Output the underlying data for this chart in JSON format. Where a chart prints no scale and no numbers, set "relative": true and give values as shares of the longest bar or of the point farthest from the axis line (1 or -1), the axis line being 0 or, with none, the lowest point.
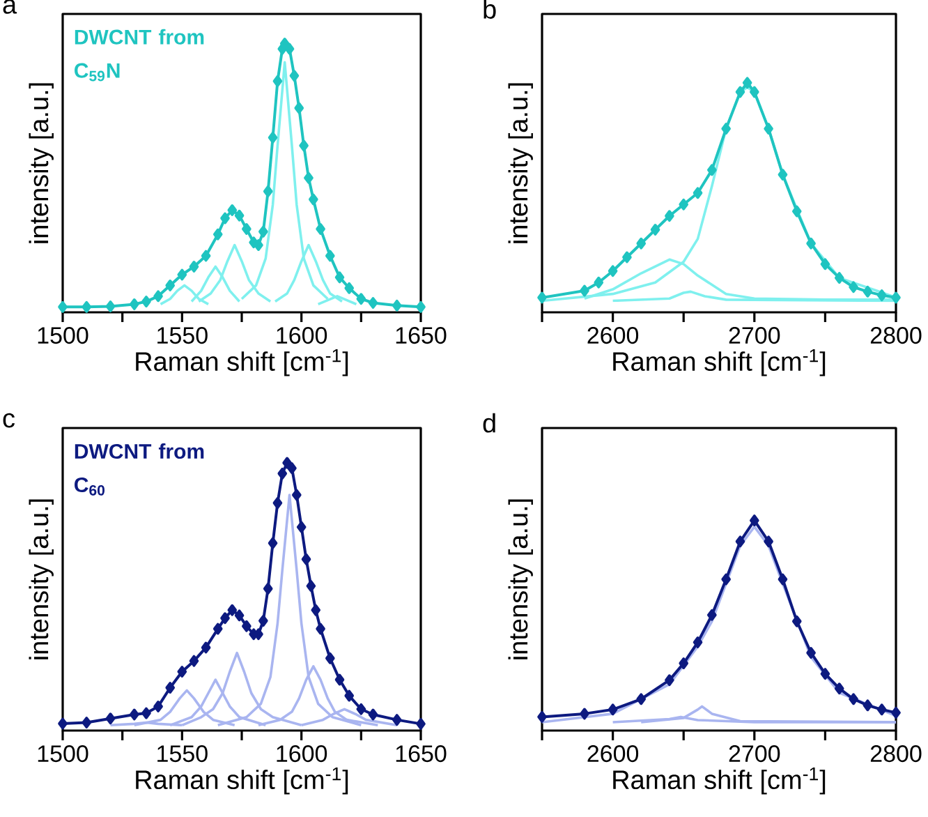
{
  "chart_data": [
    {
      "type": "line",
      "relative": true,
      "xlabel": "Raman shift [cm$^{-1}$]",
      "ylabel": "intensity [a.u.]",
      "xlim": [
        1500,
        1650
      ],
      "xticks": [
        1500,
        {
          "value": 1525,
          "label": null
        },
        1550,
        {
          "value": 1575,
          "label": null
        },
        1600,
        {
          "value": 1625,
          "label": null
        },
        1650
      ],
      "marker": "diamond",
      "line_style": "solid",
      "annotations": [
        "a",
        "DWCNT from C$_{59}$N"
      ],
      "series": [
        {
          "color": "#7FF0EE",
          "marker": "none",
          "x": [
            1541,
            1545,
            1548,
            1551,
            1554,
            1557,
            1561
          ],
          "values": [
            0.03,
            0.05,
            0.08,
            0.1,
            0.08,
            0.05,
            0.03
          ]
        },
        {
          "color": "#7FF0EE",
          "marker": "none",
          "x": [
            1554,
            1558,
            1561,
            1564,
            1567,
            1570,
            1574
          ],
          "values": [
            0.04,
            0.08,
            0.13,
            0.17,
            0.13,
            0.08,
            0.04
          ]
        },
        {
          "color": "#7FF0EE",
          "marker": "none",
          "x": [
            1557,
            1562,
            1566,
            1569,
            1572,
            1575,
            1578,
            1582,
            1587
          ],
          "values": [
            0.04,
            0.07,
            0.12,
            0.19,
            0.25,
            0.19,
            0.12,
            0.07,
            0.04
          ]
        },
        {
          "color": "#7FF0EE",
          "marker": "none",
          "x": [
            1575,
            1581,
            1585,
            1588,
            1590,
            1593,
            1596,
            1598,
            1601,
            1605,
            1611
          ],
          "values": [
            0.05,
            0.1,
            0.2,
            0.4,
            0.62,
            0.93,
            0.62,
            0.4,
            0.2,
            0.1,
            0.05
          ]
        },
        {
          "color": "#7FF0EE",
          "marker": "none",
          "x": [
            1589,
            1594,
            1597,
            1600,
            1603,
            1606,
            1609,
            1612,
            1617
          ],
          "values": [
            0.04,
            0.07,
            0.12,
            0.19,
            0.25,
            0.19,
            0.12,
            0.07,
            0.04
          ]
        },
        {
          "color": "#7FF0EE",
          "marker": "none",
          "x": [
            1607,
            1611,
            1615,
            1619,
            1623
          ],
          "values": [
            0.03,
            0.045,
            0.06,
            0.045,
            0.03
          ]
        },
        {
          "color": "#1FC4C0",
          "x": [
            1500,
            1510,
            1520,
            1530,
            1535,
            1540,
            1545,
            1550,
            1555,
            1560,
            1565,
            1568,
            1571,
            1574,
            1577,
            1580,
            1582,
            1584,
            1586,
            1588,
            1590,
            1592,
            1593,
            1595,
            1597,
            1599,
            1601,
            1603,
            1605,
            1608,
            1612,
            1616,
            1620,
            1625,
            1630,
            1640,
            1650
          ],
          "values": [
            0.02,
            0.02,
            0.022,
            0.03,
            0.04,
            0.06,
            0.1,
            0.14,
            0.17,
            0.21,
            0.29,
            0.35,
            0.38,
            0.36,
            0.31,
            0.26,
            0.25,
            0.3,
            0.45,
            0.65,
            0.86,
            0.98,
            1.0,
            0.98,
            0.88,
            0.76,
            0.62,
            0.5,
            0.42,
            0.31,
            0.21,
            0.13,
            0.09,
            0.05,
            0.035,
            0.025,
            0.02
          ]
        }
      ]
    },
    {
      "type": "line",
      "relative": true,
      "xlabel": "Raman shift [cm$^{-1}$]",
      "ylabel": "intensity [a.u.]",
      "xlim": [
        2550,
        2800
      ],
      "xticks": [
        {
          "value": 2550,
          "label": null
        },
        2600,
        {
          "value": 2650,
          "label": null
        },
        2700,
        {
          "value": 2750,
          "label": null
        },
        2800
      ],
      "marker": "diamond",
      "line_style": "solid",
      "annotations": [
        "b"
      ],
      "series": [
        {
          "color": "#7FF0EE",
          "marker": "none",
          "x": [
            2550,
            2600,
            2630,
            2650,
            2660,
            2670,
            2680,
            2690,
            2695,
            2700,
            2710,
            2720,
            2740,
            2760,
            2800
          ],
          "values": [
            0.05,
            0.08,
            0.13,
            0.22,
            0.32,
            0.55,
            0.8,
            0.96,
            0.98,
            0.96,
            0.8,
            0.6,
            0.3,
            0.15,
            0.065
          ]
        },
        {
          "color": "#7FF0EE",
          "marker": "none",
          "x": [
            2580,
            2600,
            2620,
            2640,
            2650,
            2660,
            2680,
            2700,
            2750,
            2800
          ],
          "values": [
            0.06,
            0.1,
            0.17,
            0.23,
            0.21,
            0.16,
            0.08,
            0.06,
            0.055,
            0.055
          ]
        },
        {
          "color": "#7FF0EE",
          "marker": "none",
          "x": [
            2600,
            2640,
            2650,
            2655,
            2665,
            2680,
            2800
          ],
          "values": [
            0.05,
            0.06,
            0.085,
            0.09,
            0.07,
            0.055,
            0.05
          ]
        },
        {
          "color": "#1FC4C0",
          "x": [
            2550,
            2580,
            2590,
            2600,
            2610,
            2620,
            2630,
            2640,
            2650,
            2660,
            2670,
            2680,
            2690,
            2695,
            2700,
            2710,
            2720,
            2730,
            2740,
            2750,
            2760,
            2770,
            2780,
            2790,
            2800
          ],
          "values": [
            0.064,
            0.094,
            0.13,
            0.18,
            0.24,
            0.3,
            0.36,
            0.42,
            0.47,
            0.52,
            0.62,
            0.8,
            0.96,
            1.0,
            0.96,
            0.8,
            0.6,
            0.44,
            0.3,
            0.21,
            0.15,
            0.11,
            0.09,
            0.074,
            0.064
          ]
        }
      ]
    },
    {
      "type": "line",
      "relative": true,
      "xlabel": "Raman shift [cm$^{-1}$]",
      "ylabel": "intensity [a.u.]",
      "xlim": [
        1500,
        1650
      ],
      "xticks": [
        1500,
        {
          "value": 1525,
          "label": null
        },
        1550,
        {
          "value": 1575,
          "label": null
        },
        1600,
        {
          "value": 1625,
          "label": null
        },
        1650
      ],
      "marker": "diamond",
      "line_style": "solid",
      "annotations": [
        "c",
        "DWCNT from C$_{60}$"
      ],
      "series": [
        {
          "color": "#A9B5F0",
          "marker": "none",
          "x": [
            1520,
            1530,
            1535,
            1540,
            1550
          ],
          "values": [
            0.02,
            0.025,
            0.03,
            0.025,
            0.02
          ]
        },
        {
          "color": "#A9B5F0",
          "marker": "none",
          "x": [
            1530,
            1541,
            1545,
            1549,
            1552,
            1555,
            1559,
            1563,
            1572
          ],
          "values": [
            0.02,
            0.04,
            0.07,
            0.12,
            0.15,
            0.12,
            0.07,
            0.04,
            0.02
          ]
        },
        {
          "color": "#A9B5F0",
          "marker": "none",
          "x": [
            1545,
            1554,
            1558,
            1561,
            1564,
            1567,
            1570,
            1574,
            1585
          ],
          "values": [
            0.02,
            0.05,
            0.09,
            0.14,
            0.19,
            0.14,
            0.09,
            0.05,
            0.02
          ]
        },
        {
          "color": "#A9B5F0",
          "marker": "none",
          "x": [
            1550,
            1558,
            1563,
            1567,
            1570,
            1573,
            1576,
            1579,
            1583,
            1588,
            1600
          ],
          "values": [
            0.02,
            0.05,
            0.08,
            0.14,
            0.22,
            0.29,
            0.22,
            0.14,
            0.08,
            0.05,
            0.02
          ]
        },
        {
          "color": "#A9B5F0",
          "marker": "none",
          "x": [
            1565,
            1577,
            1583,
            1587,
            1590,
            1592,
            1595,
            1598,
            1600,
            1603,
            1607,
            1613,
            1625
          ],
          "values": [
            0.02,
            0.05,
            0.1,
            0.2,
            0.4,
            0.6,
            0.88,
            0.6,
            0.4,
            0.2,
            0.1,
            0.05,
            0.02
          ]
        },
        {
          "color": "#A9B5F0",
          "marker": "none",
          "x": [
            1582,
            1591,
            1596,
            1599,
            1602,
            1605,
            1608,
            1611,
            1614,
            1619,
            1632
          ],
          "values": [
            0.02,
            0.04,
            0.07,
            0.12,
            0.19,
            0.24,
            0.19,
            0.12,
            0.07,
            0.04,
            0.02
          ]
        },
        {
          "color": "#A9B5F0",
          "marker": "none",
          "x": [
            1600,
            1609,
            1613,
            1618,
            1623,
            1627,
            1640
          ],
          "values": [
            0.02,
            0.04,
            0.06,
            0.08,
            0.06,
            0.04,
            0.02
          ]
        },
        {
          "color": "#0D1A80",
          "x": [
            1500,
            1510,
            1520,
            1530,
            1535,
            1540,
            1545,
            1550,
            1555,
            1560,
            1565,
            1568,
            1571,
            1574,
            1577,
            1580,
            1582,
            1584,
            1586,
            1588,
            1590,
            1592,
            1594,
            1596,
            1598,
            1600,
            1602,
            1604,
            1606,
            1608,
            1612,
            1616,
            1620,
            1625,
            1630,
            1640,
            1650
          ],
          "values": [
            0.026,
            0.03,
            0.045,
            0.06,
            0.065,
            0.09,
            0.16,
            0.22,
            0.26,
            0.31,
            0.38,
            0.42,
            0.45,
            0.43,
            0.39,
            0.36,
            0.36,
            0.41,
            0.53,
            0.7,
            0.85,
            0.96,
            1.0,
            0.98,
            0.88,
            0.76,
            0.64,
            0.54,
            0.45,
            0.38,
            0.27,
            0.19,
            0.13,
            0.08,
            0.06,
            0.04,
            0.025
          ]
        }
      ]
    },
    {
      "type": "line",
      "relative": true,
      "xlabel": "Raman shift [cm$^{-1}$]",
      "ylabel": "intensity [a.u.]",
      "xlim": [
        2550,
        2800
      ],
      "xticks": [
        {
          "value": 2550,
          "label": null
        },
        2600,
        {
          "value": 2650,
          "label": null
        },
        2700,
        {
          "value": 2750,
          "label": null
        },
        2800
      ],
      "marker": "diamond",
      "line_style": "solid",
      "annotations": [
        "d"
      ],
      "series": [
        {
          "color": "#A9B5F0",
          "marker": "none",
          "x": [
            2550,
            2600,
            2640,
            2660,
            2670,
            2680,
            2690,
            2700,
            2710,
            2720,
            2740,
            2760,
            2800
          ],
          "values": [
            0.04,
            0.08,
            0.22,
            0.4,
            0.52,
            0.7,
            0.88,
            0.97,
            0.88,
            0.7,
            0.35,
            0.18,
            0.07
          ]
        },
        {
          "color": "#A9B5F0",
          "marker": "none",
          "x": [
            2620,
            2650,
            2660,
            2663,
            2670,
            2690,
            2800
          ],
          "values": [
            0.04,
            0.06,
            0.1,
            0.115,
            0.08,
            0.045,
            0.04
          ]
        },
        {
          "color": "#A9B5F0",
          "marker": "none",
          "x": [
            2600,
            2640,
            2648,
            2660,
            2700,
            2800
          ],
          "values": [
            0.04,
            0.055,
            0.065,
            0.05,
            0.04,
            0.04
          ]
        },
        {
          "color": "#0D1A80",
          "x": [
            2550,
            2580,
            2600,
            2620,
            2640,
            2650,
            2660,
            2670,
            2680,
            2690,
            2700,
            2710,
            2720,
            2730,
            2740,
            2750,
            2760,
            2770,
            2780,
            2790,
            2800
          ],
          "values": [
            0.065,
            0.08,
            0.1,
            0.15,
            0.24,
            0.32,
            0.42,
            0.55,
            0.72,
            0.9,
            1.0,
            0.9,
            0.72,
            0.52,
            0.37,
            0.27,
            0.2,
            0.15,
            0.12,
            0.1,
            0.085
          ]
        }
      ]
    }
  ]
}
